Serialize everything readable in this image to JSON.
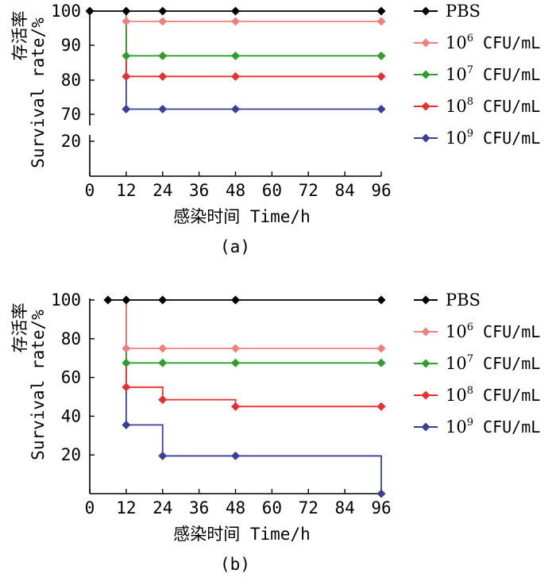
{
  "chart_data": [
    {
      "type": "line",
      "caption": "(a)",
      "xlabel": "感染时间 Time/h",
      "ylabel_cn": "存活率",
      "ylabel_en": "Survival rate/%",
      "xticks": [
        0,
        12,
        24,
        36,
        48,
        60,
        72,
        84,
        96
      ],
      "yticks": [
        20,
        70,
        80,
        90,
        100
      ],
      "axis_break": true,
      "xlim": [
        0,
        96
      ],
      "series": [
        {
          "name": "PBS",
          "color": "#000000",
          "x": [
            0,
            12,
            24,
            48,
            96
          ],
          "y": [
            100,
            100,
            100,
            100,
            100
          ]
        },
        {
          "name": "10^6 CFU/mL",
          "color": "#f08080",
          "x": [
            12,
            24,
            48,
            96
          ],
          "y": [
            97,
            97,
            97,
            97
          ]
        },
        {
          "name": "10^7 CFU/mL",
          "color": "#2e9e2e",
          "x": [
            12,
            24,
            48,
            96
          ],
          "y": [
            87,
            87,
            87,
            87
          ]
        },
        {
          "name": "10^8 CFU/mL",
          "color": "#e53030",
          "x": [
            12,
            24,
            48,
            96
          ],
          "y": [
            81,
            81,
            81,
            81
          ]
        },
        {
          "name": "10^9 CFU/mL",
          "color": "#3a3f99",
          "x": [
            12,
            24,
            48,
            96
          ],
          "y": [
            71.5,
            71.5,
            71.5,
            71.5
          ]
        }
      ]
    },
    {
      "type": "line",
      "caption": "(b)",
      "xlabel": "感染时间 Time/h",
      "ylabel_cn": "存活率",
      "ylabel_en": "Survival rate/%",
      "xticks": [
        0,
        12,
        24,
        36,
        48,
        60,
        72,
        84,
        96
      ],
      "yticks": [
        20,
        40,
        60,
        80,
        100
      ],
      "ylim": [
        0,
        100
      ],
      "xlim": [
        0,
        96
      ],
      "series": [
        {
          "name": "PBS",
          "color": "#000000",
          "x": [
            6,
            12,
            24,
            48,
            96
          ],
          "y": [
            100,
            100,
            100,
            100,
            100
          ]
        },
        {
          "name": "10^6 CFU/mL",
          "color": "#f08080",
          "x": [
            12,
            24,
            48,
            96
          ],
          "y": [
            75,
            75,
            75,
            75
          ]
        },
        {
          "name": "10^7 CFU/mL",
          "color": "#2e9e2e",
          "x": [
            12,
            24,
            48,
            96
          ],
          "y": [
            67.5,
            67.5,
            67.5,
            67.5
          ]
        },
        {
          "name": "10^8 CFU/mL",
          "color": "#e53030",
          "x": [
            12,
            24,
            48,
            96
          ],
          "y": [
            55,
            48.5,
            45,
            45
          ]
        },
        {
          "name": "10^9 CFU/mL",
          "color": "#3a3f99",
          "x": [
            12,
            24,
            48,
            96
          ],
          "y": [
            35.5,
            19.5,
            19.5,
            0
          ]
        }
      ]
    }
  ],
  "legend": [
    {
      "base": "PBS",
      "exp": "",
      "unit": "",
      "color": "#000000"
    },
    {
      "base": "10",
      "exp": "6",
      "unit": " CFU/mL",
      "color": "#f08080"
    },
    {
      "base": "10",
      "exp": "7",
      "unit": " CFU/mL",
      "color": "#2e9e2e"
    },
    {
      "base": "10",
      "exp": "8",
      "unit": " CFU/mL",
      "color": "#e53030"
    },
    {
      "base": "10",
      "exp": "9",
      "unit": " CFU/mL",
      "color": "#3a3f99"
    }
  ]
}
